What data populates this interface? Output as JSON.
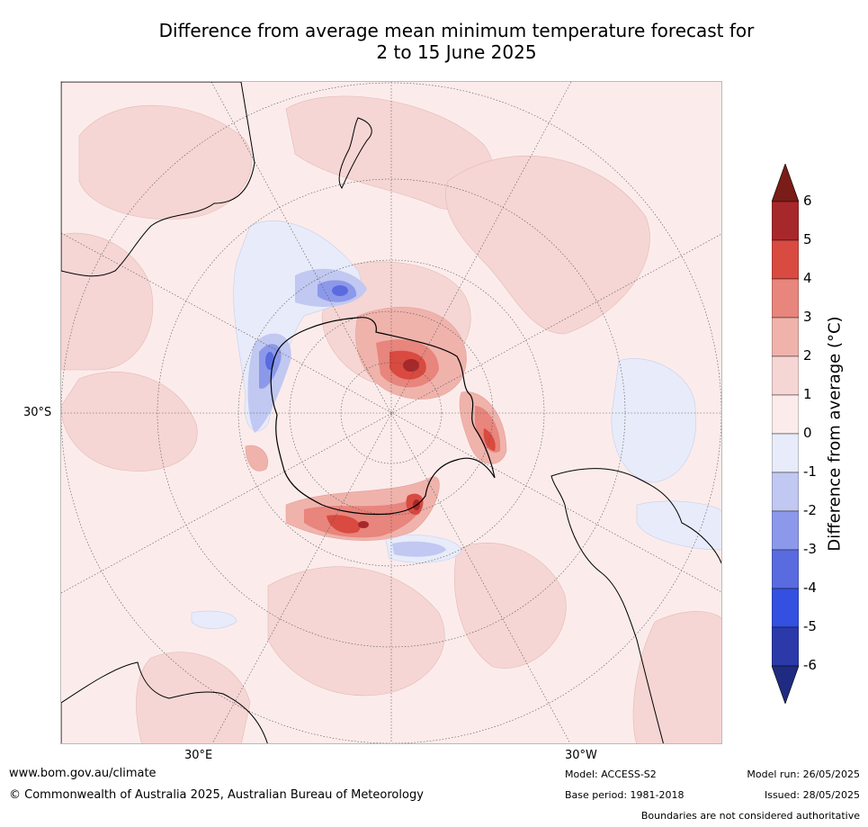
{
  "title": {
    "line1": "Difference from average mean minimum temperature forecast for",
    "line2": "2 to 15 June 2025"
  },
  "map_labels": {
    "lat_30s": "30°S",
    "lon_30e": "30°E",
    "lon_30w": "30°W"
  },
  "legend": {
    "axis_label": "Difference from average (°C)",
    "ticks": [
      "6",
      "5",
      "4",
      "3",
      "2",
      "1",
      "0",
      "-1",
      "-2",
      "-3",
      "-4",
      "-5",
      "-6"
    ],
    "colors": [
      "#7a1c18",
      "#a7282a",
      "#d94a40",
      "#e8857c",
      "#efb3ac",
      "#f5d6d4",
      "#fbeceb",
      "#e8ebf9",
      "#c1c8f1",
      "#8c99ea",
      "#5a6bdf",
      "#3350e0",
      "#2b3aa8",
      "#1f2b80"
    ]
  },
  "footer": {
    "website": "www.bom.gov.au/climate",
    "copyright": "© Commonwealth of Australia 2025, Australian Bureau of Meteorology",
    "model": "Model: ACCESS-S2",
    "base_period": "Base period: 1981-2018",
    "model_run": "Model run: 26/05/2025",
    "issued": "Issued: 28/05/2025",
    "disclaimer": "Boundaries are not considered authoritative"
  }
}
